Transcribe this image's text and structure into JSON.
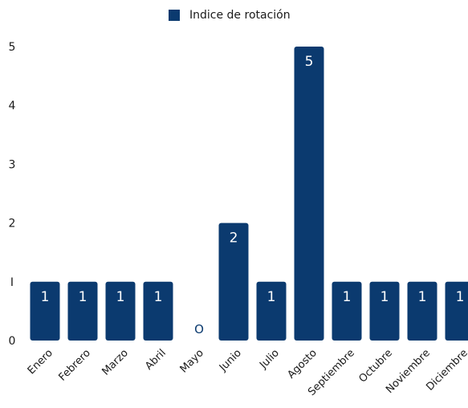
{
  "legend": {
    "label": "Indice de rotación"
  },
  "colors": {
    "bar": "#0b3a6f",
    "text": "#1a1a1a",
    "bar_label": "#ffffff",
    "zero_label": "#0b3a6f"
  },
  "chart_data": {
    "type": "bar",
    "title": "",
    "xlabel": "",
    "ylabel": "",
    "ylim": [
      0,
      5
    ],
    "yticks": [
      0,
      1,
      2,
      3,
      4,
      5
    ],
    "ytick_labels": [
      "0",
      "I",
      "2",
      "3",
      "4",
      "5"
    ],
    "legend_position": "top-center",
    "grid": false,
    "categories": [
      "Enero",
      "Febrero",
      "Marzo",
      "Abril",
      "Mayo",
      "Junio",
      "Julio",
      "Agosto",
      "Septiembre",
      "Octubre",
      "Noviembre",
      "Diciembre"
    ],
    "series": [
      {
        "name": "Indice de rotación",
        "values": [
          1,
          1,
          1,
          1,
          0,
          2,
          1,
          5,
          1,
          1,
          1,
          1
        ],
        "data_labels": [
          "1",
          "1",
          "1",
          "1",
          "O",
          "2",
          "1",
          "5",
          "1",
          "1",
          "1",
          "1"
        ]
      }
    ]
  }
}
